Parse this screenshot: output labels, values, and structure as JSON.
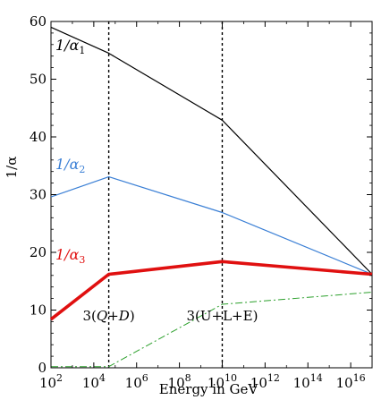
{
  "chart_data": {
    "type": "line",
    "xlabel": "Energy in GeV",
    "ylabel": "1/α",
    "x_scale": "log10",
    "xlim": [
      100,
      1e+17
    ],
    "ylim": [
      0,
      60
    ],
    "grid": false,
    "x_ticks": [
      {
        "value": 100,
        "base": "10",
        "exp": "2"
      },
      {
        "value": 10000,
        "base": "10",
        "exp": "4"
      },
      {
        "value": 1000000,
        "base": "10",
        "exp": "6"
      },
      {
        "value": 100000000,
        "base": "10",
        "exp": "8"
      },
      {
        "value": 10000000000,
        "base": "10",
        "exp": "10"
      },
      {
        "value": 1000000000000,
        "base": "10",
        "exp": "12"
      },
      {
        "value": 100000000000000,
        "base": "10",
        "exp": "14"
      },
      {
        "value": 10000000000000000,
        "base": "10",
        "exp": "16"
      }
    ],
    "y_ticks": [
      {
        "value": 0,
        "label": "0"
      },
      {
        "value": 10,
        "label": "10"
      },
      {
        "value": 20,
        "label": "20"
      },
      {
        "value": 30,
        "label": "30"
      },
      {
        "value": 40,
        "label": "40"
      },
      {
        "value": 50,
        "label": "50"
      },
      {
        "value": 60,
        "label": "60"
      }
    ],
    "thresholds": [
      {
        "x": 50000,
        "label_prefix": "3(",
        "label_italic": "Q",
        "label_op": "+",
        "label_italic2": "D",
        "label_suffix": ")"
      },
      {
        "x": 10000000000,
        "label": "3(U+L+E)"
      }
    ],
    "series": [
      {
        "name_prefix": "1/α",
        "name_sub": "1",
        "color": "#000000",
        "width": 1.2,
        "dash": "",
        "x": [
          100,
          50000,
          10000000000,
          1e+17
        ],
        "y": [
          59.0,
          54.5,
          42.9,
          16.2
        ]
      },
      {
        "name_prefix": "1/α",
        "name_sub": "2",
        "color": "#3a7fd5",
        "width": 1.2,
        "dash": "",
        "x": [
          100,
          50000,
          10000000000,
          1e+17
        ],
        "y": [
          29.6,
          33.1,
          26.9,
          16.2
        ]
      },
      {
        "name_prefix": "1/α",
        "name_sub": "3",
        "color": "#e01010",
        "width": 3.6,
        "dash": "",
        "x": [
          100,
          50000,
          10000000000,
          1e+17
        ],
        "y": [
          8.4,
          16.2,
          18.4,
          16.2
        ]
      },
      {
        "name": "",
        "color": "#2ca02c",
        "width": 1.0,
        "dash": "8,3,2,3",
        "x": [
          100,
          50000,
          10000000000,
          1e+17
        ],
        "y": [
          0.2,
          0.2,
          11.0,
          13.1
        ]
      }
    ]
  }
}
